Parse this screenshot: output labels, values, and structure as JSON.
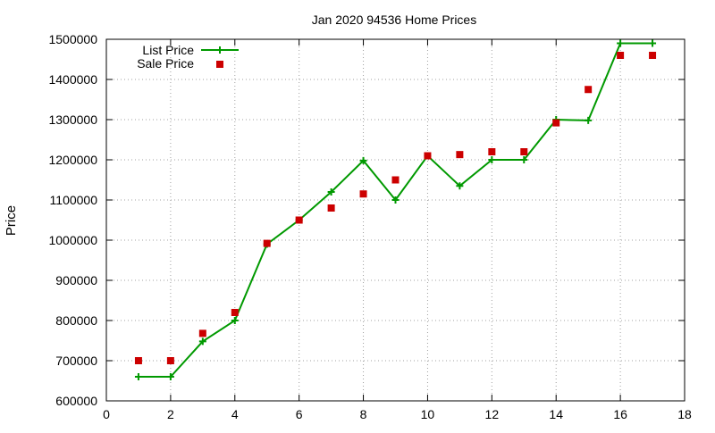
{
  "chart_data": {
    "type": "line",
    "title": "Jan 2020 94536 Home Prices",
    "xlabel": "",
    "ylabel": "Price",
    "xlim": [
      0,
      18
    ],
    "ylim": [
      600000,
      1500000
    ],
    "xticks": [
      0,
      2,
      4,
      6,
      8,
      10,
      12,
      14,
      16,
      18
    ],
    "yticks": [
      600000,
      700000,
      800000,
      900000,
      1000000,
      1100000,
      1200000,
      1300000,
      1400000,
      1500000
    ],
    "grid": true,
    "legend_position": "top-left",
    "series": [
      {
        "name": "List Price",
        "style": "line-with-plus-markers",
        "color": "#009900",
        "x": [
          1,
          2,
          3,
          4,
          5,
          6,
          7,
          8,
          9,
          10,
          11,
          12,
          13,
          14,
          15,
          16,
          17
        ],
        "values": [
          660000,
          660000,
          748000,
          800000,
          990000,
          1050000,
          1120000,
          1198000,
          1100000,
          1210000,
          1135000,
          1200000,
          1200000,
          1300000,
          1298000,
          1490000,
          1490000
        ]
      },
      {
        "name": "Sale Price",
        "style": "square-markers",
        "color": "#cc0000",
        "x": [
          1,
          2,
          3,
          4,
          5,
          6,
          7,
          8,
          9,
          10,
          11,
          12,
          13,
          14,
          15,
          16,
          17
        ],
        "values": [
          700000,
          700000,
          768000,
          820000,
          992000,
          1050000,
          1080000,
          1115000,
          1150000,
          1210000,
          1213000,
          1220000,
          1220000,
          1292000,
          1375000,
          1460000,
          1460000
        ]
      }
    ]
  }
}
